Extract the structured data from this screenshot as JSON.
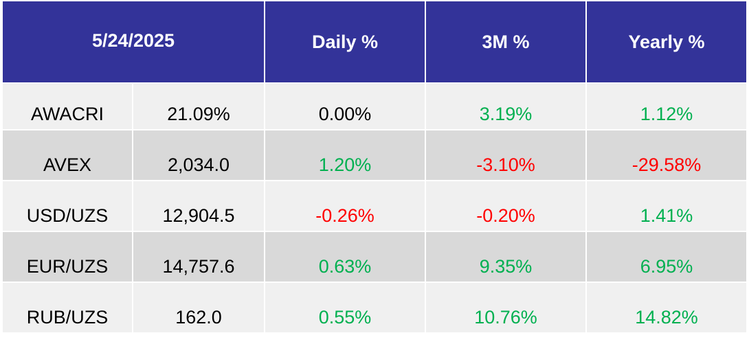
{
  "chart_data": {
    "type": "table",
    "header": {
      "date": "5/24/2025",
      "columns": [
        "Daily %",
        "3M %",
        "Yearly %"
      ]
    },
    "rows": [
      {
        "name": "AWACRI",
        "value": "21.09%",
        "daily": "0.00%",
        "m3": "3.19%",
        "yearly": "1.12%"
      },
      {
        "name": "AVEX",
        "value": "2,034.0",
        "daily": "1.20%",
        "m3": "-3.10%",
        "yearly": "-29.58%"
      },
      {
        "name": "USD/UZS",
        "value": "12,904.5",
        "daily": "-0.26%",
        "m3": "-0.20%",
        "yearly": "1.41%"
      },
      {
        "name": "EUR/UZS",
        "value": "14,757.6",
        "daily": "0.63%",
        "m3": "9.35%",
        "yearly": "6.95%"
      },
      {
        "name": "RUB/UZS",
        "value": "162.0",
        "daily": "0.55%",
        "m3": "10.76%",
        "yearly": "14.82%"
      }
    ]
  },
  "colors": {
    "header_bg": "#333399",
    "header_text": "#ffffff",
    "row_light": "#f0f0f0",
    "row_dark": "#d9d9d9",
    "positive": "#00b050",
    "negative": "#ff0000",
    "neutral": "#000000"
  }
}
